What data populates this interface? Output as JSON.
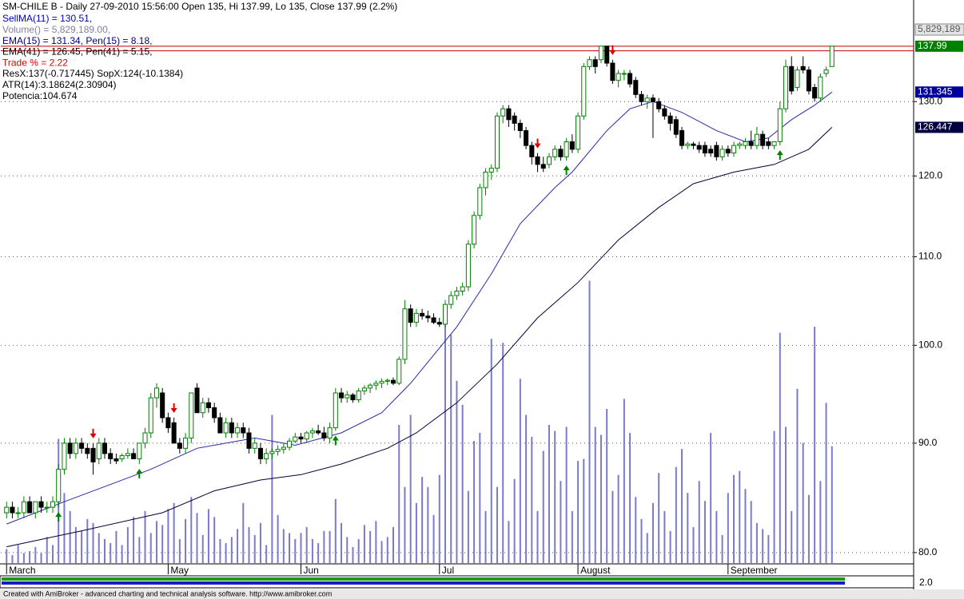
{
  "chart_data": {
    "type": "candlestick",
    "title": "SM-CHILE B - Daily 27-09-2010 15:56:00 Open 135, Hi 137.99, Lo 135, Close 137.99 (2.2%)",
    "legend": [
      {
        "text": "SellMA(11) = 130.51,",
        "color": "#0000c0"
      },
      {
        "text": "Volume() = 5,829,189.00,",
        "color": "#8080a0"
      },
      {
        "text": "EMA(15) = 131.34, Pen(15) = 8.18,",
        "color": "#000080"
      },
      {
        "text": "EMA(41) = 126.45, Pen(41) = 5.15,",
        "color": "#000000"
      },
      {
        "text": "Trade % = 2.22",
        "color": "#e00000"
      },
      {
        "text": "ResX:137(-0.717445) SopX:124(-10.1384)",
        "color": "#000000"
      },
      {
        "text": "ATR(14):3.18624(2.30904)",
        "color": "#000000"
      },
      {
        "text": "Potencia:104.674",
        "color": "#000000"
      }
    ],
    "log_scale": true,
    "grid": true,
    "ylim": [
      79.1,
      142.8
    ],
    "yticks": [
      {
        "value": 80,
        "label": "80.0"
      },
      {
        "value": 90,
        "label": "90.0"
      },
      {
        "value": 100,
        "label": "100.0"
      },
      {
        "value": 110,
        "label": "110.0"
      },
      {
        "value": 120,
        "label": "120.0"
      },
      {
        "value": 130,
        "label": "130.0"
      }
    ],
    "xlim": [
      -1,
      144
    ],
    "xticks": [
      {
        "value": 0,
        "label": "March"
      },
      {
        "value": 28,
        "label": "May"
      },
      {
        "value": 51,
        "label": "Jun"
      },
      {
        "value": 75,
        "label": "Jul"
      },
      {
        "value": 99,
        "label": "August"
      },
      {
        "value": 125,
        "label": "September"
      }
    ],
    "up_color": "#008000",
    "down_color": "#000000",
    "candles": [
      [
        83.5,
        84.5,
        83,
        84
      ],
      [
        84,
        84.5,
        83,
        83.5
      ],
      [
        83.5,
        84,
        83,
        83.5
      ],
      [
        83.5,
        85,
        83,
        84.5
      ],
      [
        84.5,
        85,
        83.5,
        83.5
      ],
      [
        83.5,
        84.5,
        83,
        84.5
      ],
      [
        84.5,
        85,
        83.5,
        84
      ],
      [
        84,
        84.5,
        83.5,
        84
      ],
      [
        84,
        85,
        83.5,
        84.5
      ],
      [
        84.5,
        88,
        84,
        87.5
      ],
      [
        87.5,
        90.5,
        87,
        90
      ],
      [
        90,
        90.5,
        88.5,
        89
      ],
      [
        89,
        90.5,
        88.5,
        90
      ],
      [
        90,
        90.5,
        89,
        89.5
      ],
      [
        89.5,
        90,
        88.5,
        89
      ],
      [
        89.5,
        90,
        87,
        88.2
      ],
      [
        88.5,
        90.5,
        88,
        90
      ],
      [
        90,
        90.5,
        88.5,
        89
      ],
      [
        89,
        89.5,
        88,
        88.5
      ],
      [
        88.5,
        89,
        88,
        88.3
      ],
      [
        88.5,
        89,
        88.2,
        88.8
      ],
      [
        88.8,
        89.5,
        88.5,
        89
      ],
      [
        89,
        89.5,
        88.5,
        88.5
      ],
      [
        88.5,
        90,
        88,
        90
      ],
      [
        90,
        91.5,
        89.5,
        91
      ],
      [
        91,
        95,
        90.5,
        94.5
      ],
      [
        94.5,
        96,
        93.5,
        95.5
      ],
      [
        95,
        95.5,
        92,
        92.5
      ],
      [
        92.5,
        93,
        91,
        91.5
      ],
      [
        92,
        92.5,
        90,
        90
      ],
      [
        90,
        90.5,
        89,
        89.5
      ],
      [
        89.5,
        91,
        89,
        90.5
      ],
      [
        90.5,
        95,
        90,
        95
      ],
      [
        95.5,
        96,
        93,
        93
      ],
      [
        93,
        94.5,
        92.5,
        94
      ],
      [
        94,
        94.5,
        93,
        93.5
      ],
      [
        93.5,
        94,
        92,
        92.5
      ],
      [
        92.5,
        93,
        91,
        91
      ],
      [
        91,
        92.5,
        90.5,
        92
      ],
      [
        92,
        92.5,
        90.5,
        91
      ],
      [
        91,
        92,
        90.5,
        91.5
      ],
      [
        91.5,
        92,
        90.5,
        91
      ],
      [
        91,
        91.5,
        89,
        89.5
      ],
      [
        89.5,
        90.5,
        89,
        90
      ],
      [
        89.5,
        90,
        88,
        88.5
      ],
      [
        88.5,
        89.5,
        88,
        89
      ],
      [
        89,
        89.5,
        88.5,
        89.2
      ],
      [
        89.2,
        89.8,
        88.8,
        89.4
      ],
      [
        89.4,
        90,
        89,
        89.6
      ],
      [
        89.6,
        90.5,
        89.3,
        90.2
      ],
      [
        90.2,
        91,
        90,
        90.6
      ],
      [
        90.6,
        91,
        90,
        90.4
      ],
      [
        90.4,
        91.2,
        90,
        91
      ],
      [
        91,
        91.5,
        90.5,
        91.2
      ],
      [
        91.2,
        91.8,
        90.8,
        91
      ],
      [
        91,
        91.6,
        90.2,
        90.5
      ],
      [
        90.5,
        92,
        90,
        91.5
      ],
      [
        91.5,
        95.5,
        91.2,
        95
      ],
      [
        95,
        95.5,
        94,
        94.5
      ],
      [
        94.5,
        95.2,
        94,
        94.8
      ],
      [
        94.8,
        95,
        94,
        94.3
      ],
      [
        94.3,
        95.5,
        94,
        95.2
      ],
      [
        95.2,
        95.8,
        94.8,
        95.5
      ],
      [
        95.5,
        96,
        95,
        95.8
      ],
      [
        95.8,
        96.3,
        95.3,
        96
      ],
      [
        96,
        96.5,
        95.5,
        96.2
      ],
      [
        96.2,
        96.5,
        95.8,
        96.3
      ],
      [
        96.3,
        96.6,
        95.8,
        96
      ],
      [
        96,
        98.8,
        95.8,
        98.5
      ],
      [
        98.5,
        105,
        98,
        104
      ],
      [
        104,
        104.5,
        102,
        102.5
      ],
      [
        102.5,
        104,
        102,
        103.5
      ],
      [
        103.5,
        104,
        102.8,
        103.2
      ],
      [
        103.2,
        103.8,
        102.5,
        103
      ],
      [
        103,
        103.5,
        102.3,
        102.5
      ],
      [
        102.5,
        103,
        102,
        102.3
      ],
      [
        102.3,
        105,
        102,
        104.5
      ],
      [
        104.5,
        106,
        104,
        105.5
      ],
      [
        105.5,
        106.5,
        105,
        106
      ],
      [
        106,
        107,
        105.5,
        106.5
      ],
      [
        106.5,
        112,
        106,
        111.5
      ],
      [
        111.5,
        115.5,
        111,
        115
      ],
      [
        115,
        119,
        114.5,
        118.5
      ],
      [
        118.5,
        121,
        117.5,
        120.5
      ],
      [
        120.5,
        121.5,
        119.5,
        121
      ],
      [
        121,
        128.5,
        120.5,
        128
      ],
      [
        128,
        129.5,
        127,
        129
      ],
      [
        129,
        129.5,
        126.5,
        127.5
      ],
      [
        128,
        128.5,
        126,
        127
      ],
      [
        127,
        127.5,
        125,
        126
      ],
      [
        126,
        126.5,
        123.5,
        124
      ],
      [
        124,
        124.5,
        121.5,
        122.5
      ],
      [
        122.5,
        123,
        120.5,
        121.5
      ],
      [
        121.5,
        122.5,
        120.5,
        121
      ],
      [
        121.5,
        123,
        121,
        122.5
      ],
      [
        122.5,
        124,
        122,
        123.5
      ],
      [
        123.5,
        124,
        122,
        122.5
      ],
      [
        122.5,
        125,
        122,
        124.5
      ],
      [
        124.5,
        125.5,
        123,
        123.5
      ],
      [
        123.5,
        128.5,
        123,
        128
      ],
      [
        128,
        135.5,
        127.5,
        135
      ],
      [
        135,
        136.5,
        134.5,
        136
      ],
      [
        136,
        136.5,
        134,
        135
      ],
      [
        136,
        138,
        135.5,
        138
      ],
      [
        138,
        138,
        135,
        135.5
      ],
      [
        135.5,
        136,
        132.5,
        133
      ],
      [
        133,
        134.5,
        132,
        134
      ],
      [
        134,
        134.5,
        133,
        134
      ],
      [
        134,
        134.5,
        132,
        132.5
      ],
      [
        133,
        133.5,
        130.5,
        131
      ],
      [
        131,
        131.5,
        129.5,
        130
      ],
      [
        130,
        131,
        129,
        130.5
      ],
      [
        130.5,
        131,
        125,
        130
      ],
      [
        130,
        130.5,
        128.5,
        129
      ],
      [
        129,
        129.5,
        127.5,
        128
      ],
      [
        128,
        128.5,
        126,
        127
      ],
      [
        127.5,
        128,
        125,
        125.5
      ],
      [
        126,
        126.5,
        123.5,
        124
      ],
      [
        124,
        124.5,
        123.5,
        124.2
      ],
      [
        124.2,
        124.5,
        123.5,
        124
      ],
      [
        124,
        124.5,
        123,
        123.5
      ],
      [
        124,
        124.5,
        122.5,
        123
      ],
      [
        123.5,
        124,
        122.5,
        123
      ],
      [
        124,
        124.5,
        122,
        122.5
      ],
      [
        122.5,
        124,
        122,
        123.5
      ],
      [
        123.5,
        124,
        122.5,
        123
      ],
      [
        123,
        124.5,
        122.5,
        124
      ],
      [
        124,
        124.5,
        123.5,
        124.2
      ],
      [
        124,
        125,
        123.5,
        124.5
      ],
      [
        124.5,
        126,
        123.5,
        124
      ],
      [
        124,
        126.5,
        123.5,
        125.5
      ],
      [
        125.5,
        126,
        123.5,
        124
      ],
      [
        124.5,
        125,
        123.5,
        124
      ],
      [
        124,
        124.5,
        123.5,
        124.5
      ],
      [
        124.5,
        130,
        124,
        129
      ],
      [
        129,
        136,
        128.5,
        135
      ],
      [
        135,
        136.5,
        131,
        131.5
      ],
      [
        132,
        135,
        131.5,
        134.5
      ],
      [
        135,
        136.5,
        134,
        134.5
      ],
      [
        134.5,
        135,
        131,
        131.5
      ],
      [
        132,
        132.5,
        130,
        130.5
      ],
      [
        130.5,
        134,
        130,
        133.5
      ],
      [
        134,
        135,
        133.5,
        134.5
      ],
      [
        135,
        137.99,
        135,
        137.99
      ]
    ],
    "volume_color": "#7b7bc8",
    "vlim": [
      0,
      27.4
    ],
    "volume": [
      0.7,
      0.4,
      0.9,
      0.5,
      0.6,
      0.8,
      0.5,
      1.3,
      0.9,
      6.2,
      3.5,
      2.6,
      1.8,
      1.6,
      2.2,
      2.0,
      1.5,
      1.2,
      1.0,
      1.6,
      0.9,
      1.8,
      2.3,
      1.3,
      2.6,
      1.5,
      2.1,
      1.9,
      2.7,
      3.0,
      1.2,
      2.2,
      3.3,
      2.5,
      1.4,
      2.7,
      2.3,
      1.2,
      1.0,
      1.3,
      1.7,
      3.0,
      1.8,
      1.4,
      2.0,
      0.9,
      7.4,
      2.4,
      1.7,
      1.5,
      1.2,
      1.5,
      1.8,
      1.2,
      1.0,
      1.6,
      1.6,
      3.2,
      2.0,
      1.3,
      0.8,
      1.2,
      1.9,
      1.6,
      2.1,
      1.1,
      1.3,
      1.8,
      6.9,
      3.8,
      7.4,
      3.0,
      4.3,
      3.8,
      2.4,
      4.4,
      12.5,
      11.4,
      9.1,
      7.9,
      3.6,
      6.1,
      6.5,
      2.6,
      11.2,
      3.8,
      11.0,
      2.1,
      4.2,
      9.2,
      7.4,
      6.3,
      2.6,
      5.6,
      6.9,
      6.6,
      4.1,
      6.8,
      2.6,
      5.1,
      5.2,
      14.1,
      6.8,
      6.4,
      7.7,
      3.6,
      4.4,
      8.2,
      6.5,
      3.3,
      2.2,
      1.5,
      3.0,
      4.5,
      2.6,
      1.6,
      4.8,
      5.7,
      3.5,
      1.8,
      4.1,
      3.1,
      6.5,
      2.6,
      1.4,
      3.5,
      4.4,
      4.6,
      3.7,
      3.1,
      2.0,
      1.7,
      1.4,
      6.6,
      11.5,
      6.8,
      2.6,
      8.7,
      6.0,
      3.4,
      11.8,
      4.1,
      8.0,
      5.83
    ],
    "series": [
      {
        "color": "#2a2aa8",
        "x": [
          0,
          10,
          25,
          33,
          43,
          50,
          58,
          65,
          70,
          78,
          84,
          89,
          95,
          98,
          104,
          108,
          112,
          117,
          123,
          128,
          132,
          136,
          140,
          143
        ],
        "values": [
          82.5,
          84.5,
          87.5,
          89.5,
          90.5,
          89.8,
          91,
          93,
          96,
          102,
          108,
          114,
          118.5,
          120.5,
          126,
          129,
          130,
          128.5,
          126,
          124.5,
          125,
          127.5,
          129.5,
          131.34
        ]
      },
      {
        "color": "#00003a",
        "x": [
          0,
          14,
          27,
          36,
          44,
          51,
          58,
          66,
          71,
          78,
          85,
          92,
          99,
          106,
          113,
          119,
          126,
          133,
          139,
          143
        ],
        "values": [
          80.5,
          82,
          83.5,
          85.5,
          86.5,
          87,
          88,
          89.5,
          91,
          94,
          98,
          103,
          107,
          112,
          116,
          119,
          120.5,
          121.5,
          123.5,
          126.45
        ]
      }
    ],
    "buy_signals": [
      9,
      23,
      57,
      97,
      134
    ],
    "sell_signals": [
      15,
      29,
      92,
      105
    ],
    "hlines": [
      137.99,
      137.3
    ],
    "hline_color": "#c00000",
    "price_tags": [
      {
        "value": 137.99,
        "color": "#008000"
      },
      {
        "value": 131.345,
        "color": "#0000a0"
      },
      {
        "value": 126.447,
        "color": "#000040"
      }
    ],
    "volume_tag": "5,829,189",
    "ribbon_label": "2.0",
    "footer": "Created with AmiBroker - advanced charting and technical analysis software. http://www.amibroker.com"
  }
}
